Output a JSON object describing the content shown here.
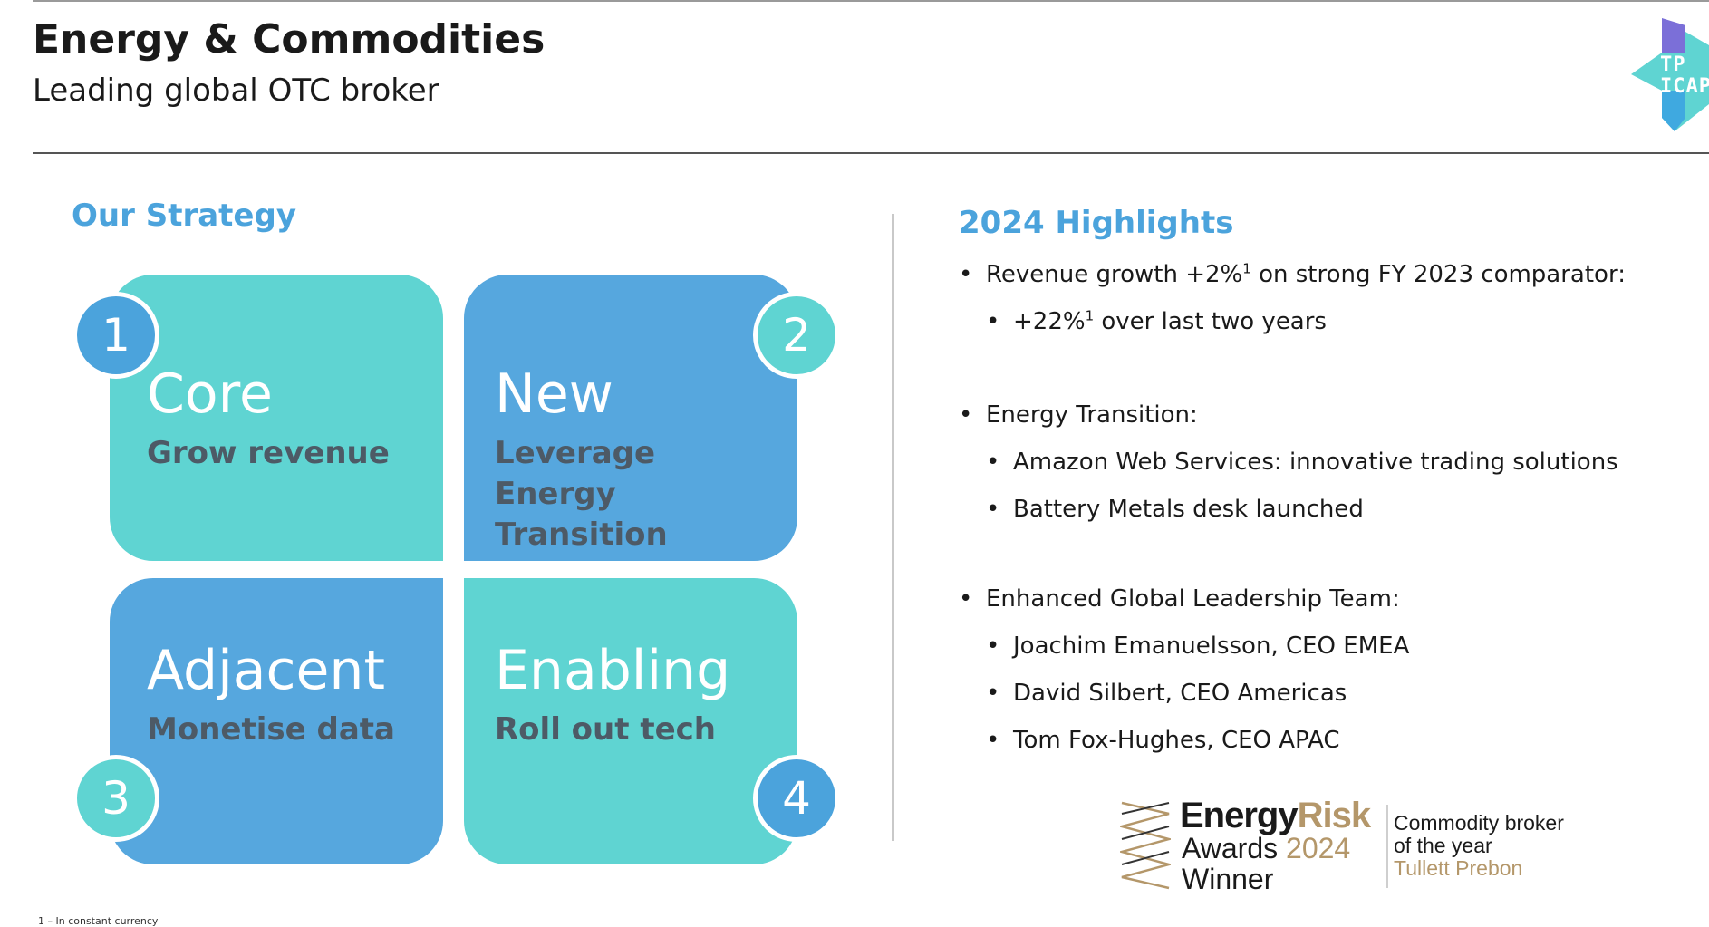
{
  "header": {
    "title": "Energy & Commodities",
    "subtitle": "Leading global OTC broker"
  },
  "logo": {
    "line1": "TP",
    "line2": "ICAP"
  },
  "strategy": {
    "heading": "Our Strategy",
    "tiles": [
      {
        "number": "1",
        "name": "Core",
        "sub": "Grow revenue"
      },
      {
        "number": "2",
        "name": "New",
        "sub": "Leverage Energy Transition"
      },
      {
        "number": "3",
        "name": "Adjacent",
        "sub": "Monetise data"
      },
      {
        "number": "4",
        "name": "Enabling",
        "sub": "Roll out tech"
      }
    ]
  },
  "highlights": {
    "heading": "2024 Highlights",
    "items": [
      {
        "pre": "Revenue growth +2%",
        "sup": "1",
        "post": " on strong FY 2023 comparator:"
      },
      {
        "pre": "+22%",
        "sup": "1",
        "post": " over last two years"
      },
      {
        "text": "Energy Transition:"
      },
      {
        "text": "Amazon Web Services: innovative trading solutions"
      },
      {
        "text": "Battery Metals desk launched"
      },
      {
        "text": "Enhanced Global Leadership Team:"
      },
      {
        "text": "Joachim Emanuelsson, CEO EMEA"
      },
      {
        "text": "David Silbert, CEO Americas"
      },
      {
        "text": "Tom Fox-Hughes, CEO APAC"
      }
    ]
  },
  "award": {
    "energy": "Energy",
    "risk": "Risk",
    "awards": "Awards",
    "year": "2024",
    "winner": "Winner",
    "category": "Commodity broker of the year",
    "company": "Tullett Prebon"
  },
  "footnote": "1 – In constant currency",
  "colors": {
    "teal": "#5fd4d2",
    "blue": "#56a7de",
    "accent": "#4ba3dc",
    "gold": "#b4976a"
  }
}
